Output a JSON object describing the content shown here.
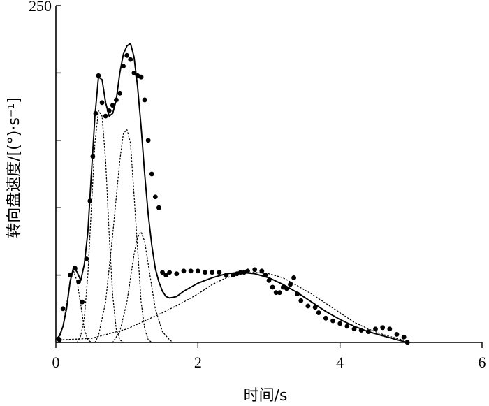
{
  "chart_data": {
    "type": "scatter",
    "title": "",
    "xlabel": "时间/s",
    "ylabel": "转向盘速度/[(°)·s⁻¹]",
    "xlim": [
      0,
      6
    ],
    "ylim": [
      0,
      250
    ],
    "xticks": [
      0,
      2,
      4,
      6
    ],
    "xtick_labels": [
      "0",
      "2",
      "4",
      "6"
    ],
    "yticks": [
      0,
      50,
      100,
      150,
      200,
      250
    ],
    "ytick_labels": [
      "",
      "",
      "",
      "",
      "",
      "250"
    ],
    "grid": false,
    "colors": {
      "axis": "#000000",
      "marks": "#000000"
    },
    "series": [
      {
        "style": "markers",
        "points": [
          [
            0.05,
            2
          ],
          [
            0.1,
            25
          ],
          [
            0.2,
            50
          ],
          [
            0.27,
            55
          ],
          [
            0.32,
            45
          ],
          [
            0.37,
            30
          ],
          [
            0.43,
            62
          ],
          [
            0.48,
            105
          ],
          [
            0.52,
            138
          ],
          [
            0.56,
            170
          ],
          [
            0.6,
            198
          ],
          [
            0.65,
            178
          ],
          [
            0.7,
            168
          ],
          [
            0.75,
            172
          ],
          [
            0.8,
            176
          ],
          [
            0.85,
            180
          ],
          [
            0.9,
            185
          ],
          [
            0.95,
            205
          ],
          [
            1.0,
            213
          ],
          [
            1.05,
            210
          ],
          [
            1.1,
            200
          ],
          [
            1.15,
            198
          ],
          [
            1.2,
            197
          ],
          [
            1.25,
            180
          ],
          [
            1.3,
            150
          ],
          [
            1.35,
            125
          ],
          [
            1.4,
            108
          ],
          [
            1.45,
            100
          ],
          [
            1.5,
            52
          ],
          [
            1.55,
            50
          ],
          [
            1.6,
            52
          ],
          [
            1.7,
            51
          ],
          [
            1.8,
            53
          ],
          [
            1.9,
            53
          ],
          [
            2.0,
            53
          ],
          [
            2.1,
            52
          ],
          [
            2.2,
            52
          ],
          [
            2.3,
            52
          ],
          [
            2.4,
            50
          ],
          [
            2.5,
            50
          ],
          [
            2.55,
            51
          ],
          [
            2.6,
            52
          ],
          [
            2.65,
            52
          ],
          [
            2.7,
            53
          ],
          [
            2.8,
            54
          ],
          [
            2.9,
            53
          ],
          [
            2.95,
            50
          ],
          [
            3.0,
            46
          ],
          [
            3.05,
            41
          ],
          [
            3.1,
            37
          ],
          [
            3.15,
            37
          ],
          [
            3.2,
            41
          ],
          [
            3.25,
            40
          ],
          [
            3.3,
            43
          ],
          [
            3.35,
            48
          ],
          [
            3.4,
            36
          ],
          [
            3.45,
            31
          ],
          [
            3.55,
            27
          ],
          [
            3.65,
            26
          ],
          [
            3.7,
            22
          ],
          [
            3.8,
            18
          ],
          [
            3.9,
            16
          ],
          [
            4.0,
            14
          ],
          [
            4.1,
            12
          ],
          [
            4.2,
            10
          ],
          [
            4.3,
            9
          ],
          [
            4.4,
            8
          ],
          [
            4.5,
            10
          ],
          [
            4.6,
            11
          ],
          [
            4.7,
            10
          ],
          [
            4.8,
            6
          ],
          [
            4.9,
            4
          ],
          [
            4.95,
            0
          ]
        ]
      },
      {
        "style": "solid",
        "points": [
          [
            0,
            2
          ],
          [
            0.05,
            5
          ],
          [
            0.1,
            12
          ],
          [
            0.15,
            25
          ],
          [
            0.2,
            45
          ],
          [
            0.25,
            56
          ],
          [
            0.3,
            52
          ],
          [
            0.35,
            46
          ],
          [
            0.4,
            58
          ],
          [
            0.45,
            82
          ],
          [
            0.5,
            125
          ],
          [
            0.55,
            168
          ],
          [
            0.6,
            197
          ],
          [
            0.65,
            195
          ],
          [
            0.7,
            178
          ],
          [
            0.75,
            168
          ],
          [
            0.8,
            170
          ],
          [
            0.85,
            180
          ],
          [
            0.9,
            200
          ],
          [
            0.95,
            214
          ],
          [
            1.0,
            220
          ],
          [
            1.05,
            222
          ],
          [
            1.1,
            212
          ],
          [
            1.15,
            190
          ],
          [
            1.2,
            160
          ],
          [
            1.25,
            125
          ],
          [
            1.3,
            95
          ],
          [
            1.35,
            72
          ],
          [
            1.4,
            55
          ],
          [
            1.45,
            45
          ],
          [
            1.5,
            38
          ],
          [
            1.55,
            34
          ],
          [
            1.6,
            33
          ],
          [
            1.7,
            34
          ],
          [
            1.8,
            38
          ],
          [
            2.0,
            44
          ],
          [
            2.2,
            48
          ],
          [
            2.4,
            51
          ],
          [
            2.6,
            52
          ],
          [
            2.8,
            51
          ],
          [
            3.0,
            48
          ],
          [
            3.2,
            43
          ],
          [
            3.4,
            37
          ],
          [
            3.6,
            30
          ],
          [
            3.8,
            23
          ],
          [
            4.0,
            17
          ],
          [
            4.2,
            12
          ],
          [
            4.4,
            8
          ],
          [
            4.6,
            5
          ],
          [
            4.8,
            2
          ],
          [
            4.95,
            0
          ]
        ]
      },
      {
        "style": "dotted",
        "points": [
          [
            0.05,
            3
          ],
          [
            0.1,
            12
          ],
          [
            0.15,
            28
          ],
          [
            0.2,
            45
          ],
          [
            0.25,
            53
          ],
          [
            0.3,
            45
          ],
          [
            0.35,
            28
          ],
          [
            0.4,
            10
          ],
          [
            0.45,
            2
          ],
          [
            0.5,
            0
          ]
        ]
      },
      {
        "style": "dotted",
        "points": [
          [
            0.3,
            0
          ],
          [
            0.35,
            5
          ],
          [
            0.4,
            18
          ],
          [
            0.45,
            50
          ],
          [
            0.5,
            100
          ],
          [
            0.55,
            148
          ],
          [
            0.6,
            172
          ],
          [
            0.65,
            168
          ],
          [
            0.7,
            135
          ],
          [
            0.75,
            80
          ],
          [
            0.8,
            35
          ],
          [
            0.85,
            10
          ],
          [
            0.9,
            2
          ],
          [
            0.95,
            0
          ]
        ]
      },
      {
        "style": "dotted",
        "points": [
          [
            0.55,
            0
          ],
          [
            0.6,
            5
          ],
          [
            0.7,
            30
          ],
          [
            0.8,
            80
          ],
          [
            0.9,
            135
          ],
          [
            0.95,
            155
          ],
          [
            1.0,
            158
          ],
          [
            1.05,
            148
          ],
          [
            1.1,
            110
          ],
          [
            1.15,
            70
          ],
          [
            1.2,
            30
          ],
          [
            1.25,
            10
          ],
          [
            1.3,
            2
          ],
          [
            1.35,
            0
          ]
        ]
      },
      {
        "style": "dotted",
        "points": [
          [
            0.8,
            0
          ],
          [
            0.9,
            8
          ],
          [
            1.0,
            30
          ],
          [
            1.1,
            65
          ],
          [
            1.15,
            78
          ],
          [
            1.2,
            82
          ],
          [
            1.25,
            75
          ],
          [
            1.3,
            58
          ],
          [
            1.4,
            25
          ],
          [
            1.5,
            8
          ],
          [
            1.6,
            2
          ],
          [
            1.65,
            0
          ]
        ]
      },
      {
        "style": "dotted",
        "points": [
          [
            0.1,
            2
          ],
          [
            0.5,
            3
          ],
          [
            1.0,
            10
          ],
          [
            1.5,
            22
          ],
          [
            1.8,
            30
          ],
          [
            2.0,
            36
          ],
          [
            2.2,
            43
          ],
          [
            2.4,
            48
          ],
          [
            2.6,
            51
          ],
          [
            2.8,
            52
          ],
          [
            3.0,
            51
          ],
          [
            3.2,
            48
          ],
          [
            3.4,
            42
          ],
          [
            3.6,
            36
          ],
          [
            3.8,
            29
          ],
          [
            4.0,
            22
          ],
          [
            4.2,
            15
          ],
          [
            4.4,
            10
          ],
          [
            4.6,
            6
          ],
          [
            4.8,
            3
          ],
          [
            4.95,
            1
          ]
        ]
      }
    ]
  }
}
